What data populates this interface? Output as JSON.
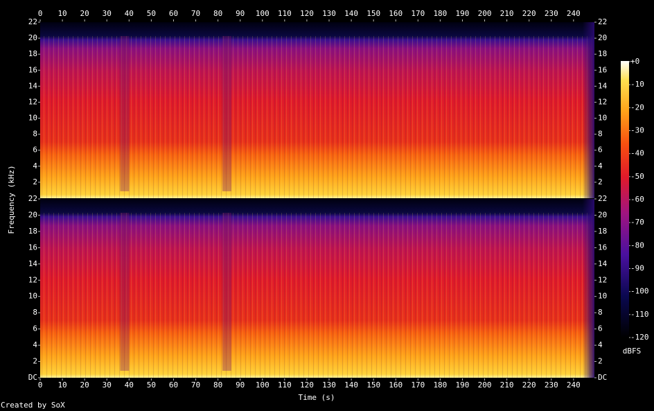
{
  "chart_data": {
    "type": "spectrogram",
    "x_label": "Time (s)",
    "y_label": "Frequency (kHz)",
    "xlim": [
      0,
      249.4
    ],
    "xticks": [
      0,
      10,
      20,
      30,
      40,
      50,
      60,
      70,
      80,
      90,
      100,
      110,
      120,
      130,
      140,
      150,
      160,
      170,
      180,
      190,
      200,
      210,
      220,
      230,
      240
    ],
    "panels": [
      {
        "ylim": [
          0,
          22
        ],
        "yticks": [
          2,
          4,
          6,
          8,
          10,
          12,
          14,
          16,
          18,
          20,
          22
        ]
      },
      {
        "ylim": [
          0,
          22
        ],
        "yticks": [
          {
            "value": 0,
            "label": "DC"
          },
          2,
          4,
          6,
          8,
          10,
          12,
          14,
          16,
          18,
          20,
          22
        ]
      }
    ],
    "colorbar": {
      "label": "dBFS",
      "lim": [
        -120,
        0
      ],
      "ticks": [
        {
          "value": 0,
          "label": "+0"
        },
        -10,
        -20,
        -30,
        -40,
        -50,
        -60,
        -70,
        -80,
        -90,
        -100,
        -110,
        -120
      ]
    }
  },
  "footer": "Created by SoX"
}
